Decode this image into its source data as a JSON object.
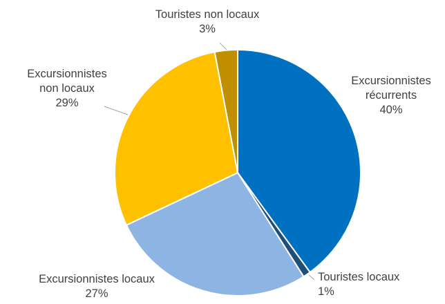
{
  "chart_data": {
    "type": "pie",
    "title": "",
    "start_angle_deg": 0,
    "direction": "clockwise",
    "slices": [
      {
        "label_lines": [
          "Excursionnistes",
          "récurrents"
        ],
        "value": 40,
        "value_label": "40%",
        "color": "#0070C0"
      },
      {
        "label_lines": [
          "Touristes locaux"
        ],
        "value": 1,
        "value_label": "1%",
        "color": "#1F4E79"
      },
      {
        "label_lines": [
          "Excursionnistes locaux"
        ],
        "value": 27,
        "value_label": "27%",
        "color": "#8DB4E2"
      },
      {
        "label_lines": [
          "Excursionnistes",
          "non locaux"
        ],
        "value": 29,
        "value_label": "29%",
        "color": "#FFC000"
      },
      {
        "label_lines": [
          "Touristes non locaux"
        ],
        "value": 3,
        "value_label": "3%",
        "color": "#BF8F00"
      }
    ],
    "legend": "none",
    "labels": "outside"
  }
}
